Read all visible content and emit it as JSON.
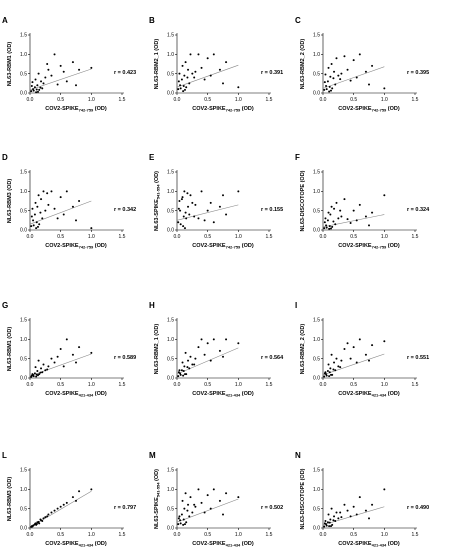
{
  "chart_data": [
    {
      "type": "scatter",
      "panel_label": "A",
      "ylabel": "NL63-RBM1 (OD)",
      "ylabel_sub": "",
      "xlabel": "COV2-SPIKE",
      "xlabel_sub": "742-759",
      "xlabel_unit": " (OD)",
      "xlim": [
        0,
        1.5
      ],
      "ylim": [
        0,
        1.5
      ],
      "xticks": [
        "0.0",
        "0.5",
        "1.0",
        "1.5"
      ],
      "yticks": [
        "0.0",
        "0.5",
        "1.0",
        "1.5"
      ],
      "r_label": "r = 0.423",
      "fit": {
        "x": [
          0,
          1.0
        ],
        "y": [
          0.08,
          0.62
        ]
      },
      "x": [
        0.02,
        0.05,
        0.08,
        0.1,
        0.12,
        0.15,
        0.18,
        0.2,
        0.22,
        0.25,
        0.03,
        0.06,
        0.09,
        0.11,
        0.14,
        0.17,
        0.3,
        0.35,
        0.4,
        0.45,
        0.5,
        0.55,
        0.6,
        0.7,
        0.75,
        0.8,
        1.0,
        0.04,
        0.13,
        0.28
      ],
      "y": [
        0.05,
        0.1,
        0.15,
        0.02,
        0.2,
        0.08,
        0.3,
        0.12,
        0.25,
        0.4,
        0.18,
        0.06,
        0.35,
        0.09,
        0.5,
        0.14,
        0.6,
        0.45,
        1.0,
        0.22,
        0.7,
        0.55,
        0.3,
        0.8,
        0.2,
        0.6,
        0.65,
        0.28,
        0.03,
        0.75
      ]
    },
    {
      "type": "scatter",
      "panel_label": "B",
      "ylabel": "NL63-RBM2_1 (OD)",
      "ylabel_sub": "",
      "xlabel": "COV2-SPIKE",
      "xlabel_sub": "742-759",
      "xlabel_unit": " (OD)",
      "xlim": [
        0,
        1.5
      ],
      "ylim": [
        0,
        1.5
      ],
      "xticks": [
        "0.0",
        "0.5",
        "1.0",
        "1.5"
      ],
      "yticks": [
        "0.0",
        "0.5",
        "1.0",
        "1.5"
      ],
      "r_label": "r = 0.391",
      "fit": {
        "x": [
          0,
          1.0
        ],
        "y": [
          0.15,
          0.72
        ]
      },
      "x": [
        0.02,
        0.05,
        0.08,
        0.1,
        0.12,
        0.15,
        0.18,
        0.2,
        0.22,
        0.25,
        0.03,
        0.06,
        0.09,
        0.11,
        0.14,
        0.17,
        0.3,
        0.35,
        0.4,
        0.45,
        0.5,
        0.55,
        0.6,
        0.7,
        0.75,
        0.8,
        1.0,
        0.04,
        0.13,
        0.28
      ],
      "y": [
        0.1,
        0.2,
        0.35,
        0.05,
        0.45,
        0.15,
        0.6,
        0.25,
        1.0,
        0.5,
        0.3,
        0.12,
        0.7,
        0.18,
        0.8,
        0.4,
        0.55,
        1.0,
        0.65,
        0.35,
        0.9,
        0.45,
        1.0,
        0.6,
        0.25,
        0.8,
        0.15,
        0.5,
        0.08,
        0.4
      ]
    },
    {
      "type": "scatter",
      "panel_label": "C",
      "ylabel": "NL63-RBM2_2 (OD)",
      "ylabel_sub": "",
      "xlabel": "COV2-SPIKE",
      "xlabel_sub": "742-759",
      "xlabel_unit": " (OD)",
      "xlim": [
        0,
        1.5
      ],
      "ylim": [
        0,
        1.5
      ],
      "xticks": [
        "0.0",
        "0.5",
        "1.0",
        "1.5"
      ],
      "yticks": [
        "0.0",
        "0.5",
        "1.0",
        "1.5"
      ],
      "r_label": "r = 0.395",
      "fit": {
        "x": [
          0,
          1.0
        ],
        "y": [
          0.12,
          0.68
        ]
      },
      "x": [
        0.02,
        0.05,
        0.08,
        0.1,
        0.12,
        0.15,
        0.18,
        0.2,
        0.22,
        0.25,
        0.03,
        0.06,
        0.09,
        0.11,
        0.14,
        0.17,
        0.3,
        0.35,
        0.4,
        0.45,
        0.5,
        0.55,
        0.6,
        0.7,
        0.75,
        0.8,
        1.0,
        0.04,
        0.13,
        0.28
      ],
      "y": [
        0.08,
        0.18,
        0.3,
        0.04,
        0.42,
        0.12,
        0.55,
        0.22,
        0.9,
        0.45,
        0.28,
        0.1,
        0.65,
        0.16,
        0.75,
        0.38,
        0.5,
        0.95,
        0.6,
        0.32,
        0.85,
        0.4,
        1.0,
        0.55,
        0.22,
        0.7,
        0.12,
        0.48,
        0.06,
        0.36
      ]
    },
    {
      "type": "scatter",
      "panel_label": "D",
      "ylabel": "NL63-RBM3 (OD)",
      "ylabel_sub": "",
      "xlabel": "COV2-SPIKE",
      "xlabel_sub": "742-759",
      "xlabel_unit": " (OD)",
      "xlim": [
        0,
        1.5
      ],
      "ylim": [
        0,
        1.5
      ],
      "xticks": [
        "0.0",
        "0.5",
        "1.0",
        "1.5"
      ],
      "yticks": [
        "0.0",
        "0.5",
        "1.0",
        "1.5"
      ],
      "r_label": "r = 0.342",
      "fit": {
        "x": [
          0,
          1.0
        ],
        "y": [
          0.15,
          0.75
        ]
      },
      "x": [
        0.02,
        0.05,
        0.08,
        0.1,
        0.12,
        0.15,
        0.18,
        0.2,
        0.22,
        0.25,
        0.03,
        0.06,
        0.09,
        0.11,
        0.14,
        0.17,
        0.3,
        0.35,
        0.4,
        0.45,
        0.5,
        0.55,
        0.6,
        0.7,
        0.75,
        0.8,
        1.0,
        0.04,
        0.13,
        0.28
      ],
      "y": [
        0.1,
        0.25,
        0.4,
        0.05,
        0.6,
        0.15,
        0.8,
        0.3,
        1.0,
        0.5,
        0.35,
        0.12,
        0.7,
        0.2,
        0.9,
        0.45,
        0.65,
        1.0,
        0.55,
        0.3,
        0.85,
        0.4,
        1.0,
        0.6,
        0.25,
        0.75,
        0.05,
        0.55,
        0.08,
        0.95
      ]
    },
    {
      "type": "scatter",
      "panel_label": "E",
      "ylabel": "NL63-SPIKE",
      "ylabel_sub": "541-554",
      "ylabel_unit": " (OD)",
      "xlabel": "COV2-SPIKE",
      "xlabel_sub": "742-759",
      "xlabel_unit": " (OD)",
      "xlim": [
        0,
        1.5
      ],
      "ylim": [
        0,
        1.5
      ],
      "xticks": [
        "0.0",
        "0.5",
        "1.0",
        "1.5"
      ],
      "yticks": [
        "0.0",
        "0.5",
        "1.0",
        "1.5"
      ],
      "r_label": "r = 0.155",
      "fit": {
        "x": [
          0,
          1.0
        ],
        "y": [
          0.25,
          0.65
        ]
      },
      "x": [
        0.02,
        0.05,
        0.08,
        0.1,
        0.12,
        0.15,
        0.18,
        0.2,
        0.22,
        0.25,
        0.03,
        0.06,
        0.09,
        0.11,
        0.14,
        0.17,
        0.3,
        0.35,
        0.4,
        0.45,
        0.5,
        0.55,
        0.6,
        0.7,
        0.75,
        0.8,
        1.0,
        0.04,
        0.13,
        0.28
      ],
      "y": [
        0.2,
        0.5,
        0.8,
        0.1,
        1.0,
        0.3,
        0.6,
        0.4,
        0.9,
        0.7,
        0.55,
        0.15,
        0.85,
        0.35,
        0.45,
        0.95,
        0.65,
        0.3,
        1.0,
        0.25,
        0.5,
        0.7,
        0.2,
        0.6,
        0.9,
        0.4,
        1.0,
        0.75,
        0.05,
        0.35
      ]
    },
    {
      "type": "scatter",
      "panel_label": "F",
      "ylabel": "NL63-DISCOTOPE (OD)",
      "ylabel_sub": "",
      "xlabel": "COV2-SPIKE",
      "xlabel_sub": "742-759",
      "xlabel_unit": " (OD)",
      "xlim": [
        0,
        1.5
      ],
      "ylim": [
        0,
        1.5
      ],
      "xticks": [
        "0.0",
        "0.5",
        "1.0",
        "1.5"
      ],
      "yticks": [
        "0.0",
        "0.5",
        "1.0",
        "1.5"
      ],
      "r_label": "r = 0.324",
      "fit": {
        "x": [
          0,
          1.0
        ],
        "y": [
          0.08,
          0.4
        ]
      },
      "x": [
        0.02,
        0.05,
        0.08,
        0.1,
        0.12,
        0.15,
        0.18,
        0.2,
        0.22,
        0.25,
        0.03,
        0.06,
        0.09,
        0.11,
        0.14,
        0.17,
        0.3,
        0.35,
        0.4,
        0.45,
        0.5,
        0.55,
        0.6,
        0.7,
        0.75,
        0.8,
        1.0,
        0.04,
        0.13,
        0.28
      ],
      "y": [
        0.05,
        0.12,
        0.25,
        0.03,
        0.4,
        0.08,
        0.55,
        0.15,
        0.7,
        0.3,
        0.2,
        0.06,
        0.45,
        0.1,
        0.6,
        0.22,
        0.35,
        0.8,
        0.28,
        0.18,
        0.5,
        0.25,
        0.65,
        0.35,
        0.12,
        0.45,
        0.9,
        0.3,
        0.04,
        0.5
      ]
    },
    {
      "type": "scatter",
      "panel_label": "G",
      "ylabel": "NL63-RBM1 (OD)",
      "ylabel_sub": "",
      "xlabel": "COV2-SPIKE",
      "xlabel_sub": "421-434",
      "xlabel_unit": " (OD)",
      "xlim": [
        0,
        1.5
      ],
      "ylim": [
        0,
        1.5
      ],
      "xticks": [
        "0.0",
        "0.5",
        "1.0",
        "1.5"
      ],
      "yticks": [
        "0.0",
        "0.5",
        "1.0",
        "1.5"
      ],
      "r_label": "r = 0.589",
      "fit": {
        "x": [
          0,
          1.0
        ],
        "y": [
          0.05,
          0.62
        ]
      },
      "x": [
        0.02,
        0.05,
        0.08,
        0.1,
        0.12,
        0.15,
        0.18,
        0.2,
        0.22,
        0.25,
        0.03,
        0.06,
        0.09,
        0.11,
        0.14,
        0.17,
        0.3,
        0.35,
        0.4,
        0.45,
        0.5,
        0.55,
        0.6,
        0.7,
        0.75,
        0.8,
        1.0,
        0.04,
        0.13,
        0.28
      ],
      "y": [
        0.03,
        0.08,
        0.12,
        0.04,
        0.18,
        0.1,
        0.25,
        0.15,
        0.35,
        0.2,
        0.06,
        0.05,
        0.28,
        0.09,
        0.45,
        0.14,
        0.3,
        0.5,
        0.4,
        0.55,
        0.75,
        0.3,
        1.0,
        0.6,
        0.4,
        0.8,
        0.65,
        0.1,
        0.07,
        0.22
      ]
    },
    {
      "type": "scatter",
      "panel_label": "H",
      "ylabel": "NL63-RBM2_1 (OD)",
      "ylabel_sub": "",
      "xlabel": "COV2-SPIKE",
      "xlabel_sub": "421-434",
      "xlabel_unit": " (OD)",
      "xlim": [
        0,
        1.5
      ],
      "ylim": [
        0,
        1.5
      ],
      "xticks": [
        "0.0",
        "0.5",
        "1.0",
        "1.5"
      ],
      "yticks": [
        "0.0",
        "0.5",
        "1.0",
        "1.5"
      ],
      "r_label": "r = 0.564",
      "fit": {
        "x": [
          0,
          1.0
        ],
        "y": [
          0.1,
          0.78
        ]
      },
      "x": [
        0.02,
        0.05,
        0.08,
        0.1,
        0.12,
        0.15,
        0.18,
        0.2,
        0.22,
        0.25,
        0.03,
        0.06,
        0.09,
        0.11,
        0.14,
        0.17,
        0.3,
        0.35,
        0.4,
        0.45,
        0.5,
        0.55,
        0.6,
        0.7,
        0.75,
        0.8,
        1.0,
        0.04,
        0.13,
        0.28
      ],
      "y": [
        0.05,
        0.12,
        0.2,
        0.06,
        0.3,
        0.1,
        0.45,
        0.25,
        0.55,
        0.35,
        0.15,
        0.08,
        0.4,
        0.18,
        0.65,
        0.28,
        0.5,
        0.8,
        1.0,
        0.6,
        0.9,
        0.45,
        1.0,
        0.7,
        0.55,
        1.0,
        0.9,
        0.2,
        0.1,
        0.35
      ]
    },
    {
      "type": "scatter",
      "panel_label": "I",
      "ylabel": "NL63-RBM2_2 (OD)",
      "ylabel_sub": "",
      "xlabel": "COV2-SPIKE",
      "xlabel_sub": "421-434",
      "xlabel_unit": " (OD)",
      "xlim": [
        0,
        1.5
      ],
      "ylim": [
        0,
        1.5
      ],
      "xticks": [
        "0.0",
        "0.5",
        "1.0",
        "1.5"
      ],
      "yticks": [
        "0.0",
        "0.5",
        "1.0",
        "1.5"
      ],
      "r_label": "r = 0.551",
      "fit": {
        "x": [
          0,
          1.0
        ],
        "y": [
          0.08,
          0.62
        ]
      },
      "x": [
        0.02,
        0.05,
        0.08,
        0.1,
        0.12,
        0.15,
        0.18,
        0.2,
        0.22,
        0.25,
        0.03,
        0.06,
        0.09,
        0.11,
        0.14,
        0.17,
        0.3,
        0.35,
        0.4,
        0.45,
        0.5,
        0.55,
        0.6,
        0.7,
        0.75,
        0.8,
        1.0,
        0.04,
        0.13,
        0.28
      ],
      "y": [
        0.04,
        0.1,
        0.18,
        0.05,
        0.25,
        0.08,
        0.4,
        0.2,
        0.5,
        0.3,
        0.12,
        0.06,
        0.35,
        0.15,
        0.6,
        0.22,
        0.45,
        0.75,
        0.9,
        0.5,
        0.8,
        0.4,
        1.0,
        0.6,
        0.45,
        0.85,
        0.95,
        0.15,
        0.08,
        0.28
      ]
    },
    {
      "type": "scatter",
      "panel_label": "L",
      "ylabel": "NL63-RBM3 (OD)",
      "ylabel_sub": "",
      "xlabel": "COV2-SPIKE",
      "xlabel_sub": "421-434",
      "xlabel_unit": " (OD)",
      "xlim": [
        0,
        1.5
      ],
      "ylim": [
        0,
        1.5
      ],
      "xticks": [
        "0.0",
        "0.5",
        "1.0",
        "1.5"
      ],
      "yticks": [
        "0.0",
        "0.5",
        "1.0",
        "1.5"
      ],
      "r_label": "r = 0.797",
      "fit": {
        "x": [
          0,
          1.0
        ],
        "y": [
          0.02,
          0.95
        ]
      },
      "x": [
        0.02,
        0.05,
        0.08,
        0.1,
        0.12,
        0.15,
        0.18,
        0.2,
        0.22,
        0.25,
        0.03,
        0.06,
        0.09,
        0.11,
        0.14,
        0.17,
        0.3,
        0.35,
        0.4,
        0.45,
        0.5,
        0.55,
        0.6,
        0.7,
        0.75,
        0.8,
        1.0,
        0.04,
        0.13,
        0.28
      ],
      "y": [
        0.03,
        0.06,
        0.1,
        0.08,
        0.15,
        0.12,
        0.2,
        0.18,
        0.25,
        0.28,
        0.05,
        0.07,
        0.12,
        0.1,
        0.16,
        0.22,
        0.35,
        0.4,
        0.45,
        0.5,
        0.55,
        0.6,
        0.65,
        0.8,
        0.7,
        0.95,
        1.0,
        0.04,
        0.14,
        0.3
      ]
    },
    {
      "type": "scatter",
      "panel_label": "M",
      "ylabel": "NL63-SPIKE",
      "ylabel_sub": "541-554",
      "ylabel_unit": " (OD)",
      "xlabel": "COV2-SPIKE",
      "xlabel_sub": "421-434",
      "xlabel_unit": " (OD)",
      "xlim": [
        0,
        1.5
      ],
      "ylim": [
        0,
        1.5
      ],
      "xticks": [
        "0.0",
        "0.5",
        "1.0",
        "1.5"
      ],
      "yticks": [
        "0.0",
        "0.5",
        "1.0",
        "1.5"
      ],
      "r_label": "r = 0.502",
      "fit": {
        "x": [
          0,
          1.0
        ],
        "y": [
          0.15,
          0.75
        ]
      },
      "x": [
        0.02,
        0.05,
        0.08,
        0.1,
        0.12,
        0.15,
        0.18,
        0.2,
        0.22,
        0.25,
        0.03,
        0.06,
        0.09,
        0.11,
        0.14,
        0.17,
        0.3,
        0.35,
        0.4,
        0.45,
        0.5,
        0.55,
        0.6,
        0.7,
        0.75,
        0.8,
        1.0,
        0.04,
        0.13,
        0.28
      ],
      "y": [
        0.1,
        0.2,
        0.35,
        0.08,
        0.5,
        0.15,
        0.6,
        0.3,
        0.8,
        0.4,
        0.25,
        0.12,
        0.7,
        0.22,
        0.9,
        0.45,
        0.55,
        1.0,
        0.65,
        0.4,
        0.85,
        0.5,
        1.0,
        0.7,
        0.35,
        0.9,
        0.8,
        0.3,
        0.1,
        0.6
      ]
    },
    {
      "type": "scatter",
      "panel_label": "N",
      "ylabel": "NL63-DISCOTOPE (OD)",
      "ylabel_sub": "",
      "xlabel": "COV2-SPIKE",
      "xlabel_sub": "421-434",
      "xlabel_unit": " (OD)",
      "xlim": [
        0,
        1.5
      ],
      "ylim": [
        0,
        1.5
      ],
      "xticks": [
        "0.0",
        "0.5",
        "1.0",
        "1.5"
      ],
      "yticks": [
        "0.0",
        "0.5",
        "1.0",
        "1.5"
      ],
      "r_label": "r = 0.490",
      "fit": {
        "x": [
          0,
          1.0
        ],
        "y": [
          0.08,
          0.55
        ]
      },
      "x": [
        0.02,
        0.05,
        0.08,
        0.1,
        0.12,
        0.15,
        0.18,
        0.2,
        0.22,
        0.25,
        0.03,
        0.06,
        0.09,
        0.11,
        0.14,
        0.17,
        0.3,
        0.35,
        0.4,
        0.45,
        0.5,
        0.55,
        0.6,
        0.7,
        0.75,
        0.8,
        1.0,
        0.04,
        0.13,
        0.28
      ],
      "y": [
        0.04,
        0.1,
        0.15,
        0.05,
        0.22,
        0.08,
        0.3,
        0.18,
        0.4,
        0.25,
        0.12,
        0.06,
        0.35,
        0.14,
        0.5,
        0.2,
        0.28,
        0.6,
        0.45,
        0.3,
        0.55,
        0.35,
        0.8,
        0.45,
        0.25,
        0.6,
        1.0,
        0.18,
        0.05,
        0.4
      ]
    }
  ]
}
